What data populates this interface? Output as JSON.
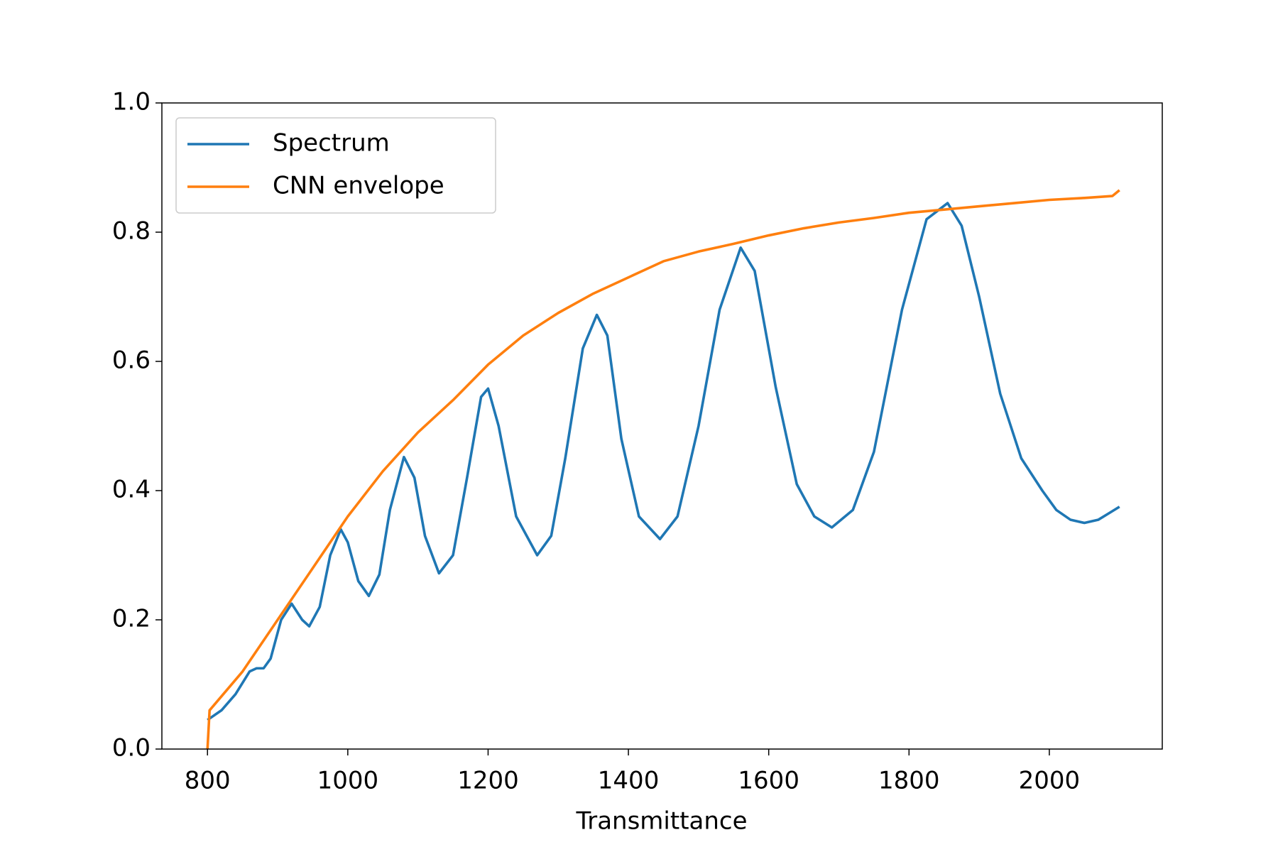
{
  "chart_data": {
    "type": "line",
    "xlabel": "Transmittance",
    "xlim": [
      735,
      2161
    ],
    "ylim": [
      0,
      1
    ],
    "xticks": [
      800,
      1000,
      1200,
      1400,
      1600,
      1800,
      2000
    ],
    "yticks": [
      {
        "value": 0,
        "label": "0.0"
      },
      0.2,
      0.4,
      0.6,
      0.8,
      {
        "value": 1,
        "label": "1.0"
      }
    ],
    "legend": "upper left",
    "series": [
      {
        "name": "Spectrum",
        "color": "#1f77b4",
        "x": [
          800,
          820,
          840,
          860,
          870,
          880,
          890,
          905,
          920,
          935,
          945,
          960,
          975,
          990,
          1000,
          1015,
          1030,
          1045,
          1060,
          1080,
          1095,
          1110,
          1130,
          1150,
          1170,
          1190,
          1200,
          1215,
          1240,
          1270,
          1290,
          1310,
          1335,
          1355,
          1370,
          1390,
          1415,
          1445,
          1470,
          1500,
          1530,
          1560,
          1580,
          1610,
          1640,
          1665,
          1690,
          1720,
          1750,
          1790,
          1825,
          1855,
          1875,
          1900,
          1930,
          1960,
          1990,
          2010,
          2030,
          2050,
          2070,
          2085,
          2100
        ],
        "values": [
          0.045,
          0.06,
          0.085,
          0.12,
          0.125,
          0.125,
          0.14,
          0.2,
          0.225,
          0.2,
          0.19,
          0.22,
          0.3,
          0.34,
          0.32,
          0.26,
          0.237,
          0.27,
          0.37,
          0.452,
          0.42,
          0.33,
          0.272,
          0.3,
          0.42,
          0.545,
          0.558,
          0.5,
          0.36,
          0.3,
          0.33,
          0.45,
          0.62,
          0.672,
          0.64,
          0.48,
          0.36,
          0.325,
          0.36,
          0.5,
          0.68,
          0.776,
          0.74,
          0.56,
          0.41,
          0.36,
          0.343,
          0.37,
          0.46,
          0.68,
          0.82,
          0.845,
          0.81,
          0.7,
          0.55,
          0.45,
          0.4,
          0.37,
          0.355,
          0.35,
          0.355,
          0.365,
          0.375
        ]
      },
      {
        "name": "CNN envelope",
        "color": "#ff7f0e",
        "x": [
          800,
          803,
          850,
          900,
          950,
          1000,
          1050,
          1100,
          1150,
          1200,
          1250,
          1300,
          1350,
          1400,
          1450,
          1500,
          1550,
          1600,
          1650,
          1700,
          1750,
          1800,
          1850,
          1900,
          1950,
          2000,
          2050,
          2090,
          2100
        ],
        "values": [
          0,
          0.06,
          0.12,
          0.2,
          0.28,
          0.36,
          0.43,
          0.49,
          0.54,
          0.595,
          0.64,
          0.675,
          0.705,
          0.73,
          0.755,
          0.77,
          0.782,
          0.795,
          0.806,
          0.815,
          0.822,
          0.83,
          0.835,
          0.84,
          0.845,
          0.85,
          0.853,
          0.856,
          0.865
        ]
      }
    ]
  }
}
